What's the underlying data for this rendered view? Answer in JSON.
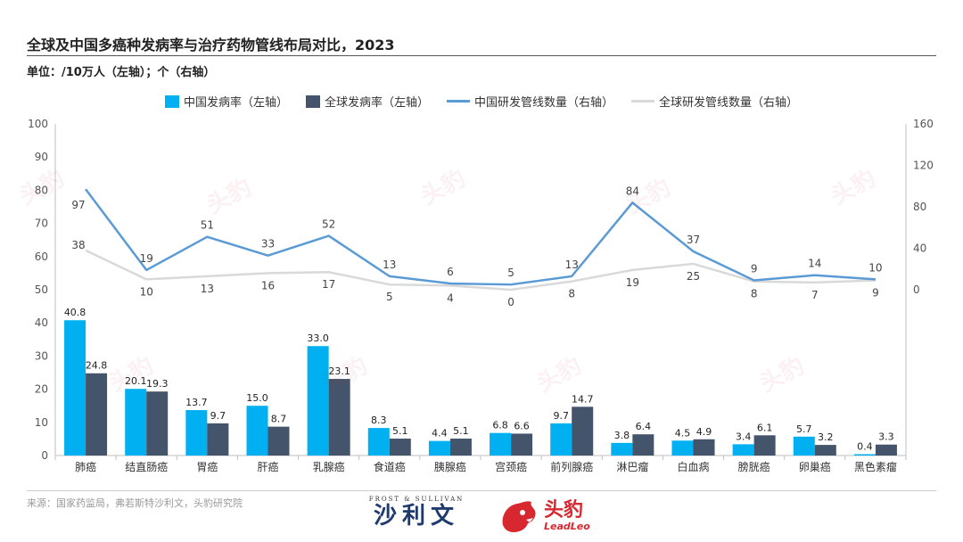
{
  "title": "全球及中国多癌种发病率与治疗药物管线布局对比，2023",
  "unit": "单位：/10万人（左轴）；个（右轴）",
  "legend": {
    "china_rate": "中国发病率（左轴）",
    "global_rate": "全球发病率（左轴）",
    "china_pipeline": "中国研发管线数量（右轴）",
    "global_pipeline": "全球研发管线数量（右轴）"
  },
  "colors": {
    "china_bar": "#00b0f0",
    "global_bar": "#44546a",
    "china_line": "#5b9bd5",
    "global_line": "#d9d9d9",
    "brand_red": "#d7282f",
    "brand_navy": "#1f3a6e"
  },
  "chart_data": {
    "type": "bar",
    "categories": [
      "肺癌",
      "结直肠癌",
      "胃癌",
      "肝癌",
      "乳腺癌",
      "食道癌",
      "胰腺癌",
      "宫颈癌",
      "前列腺癌",
      "淋巴瘤",
      "白血病",
      "膀胱癌",
      "卵巢癌",
      "黑色素瘤"
    ],
    "series": [
      {
        "name": "中国发病率（左轴）",
        "kind": "bar",
        "axis": "left",
        "values": [
          40.8,
          20.1,
          13.7,
          15.0,
          33.0,
          8.3,
          4.4,
          6.8,
          9.7,
          3.8,
          4.5,
          3.4,
          5.7,
          0.4
        ]
      },
      {
        "name": "全球发病率（左轴）",
        "kind": "bar",
        "axis": "left",
        "values": [
          24.8,
          19.3,
          9.7,
          8.7,
          23.1,
          5.1,
          5.1,
          6.6,
          14.7,
          6.4,
          4.9,
          6.1,
          3.2,
          3.3
        ]
      },
      {
        "name": "中国研发管线数量（右轴）",
        "kind": "line",
        "axis": "right",
        "values": [
          97,
          19,
          51,
          33,
          52,
          13,
          6,
          5,
          13,
          84,
          37,
          9,
          14,
          10
        ]
      },
      {
        "name": "全球研发管线数量（右轴）",
        "kind": "line",
        "axis": "right",
        "values": [
          38,
          10,
          13,
          16,
          17,
          5,
          4,
          0,
          8,
          19,
          25,
          8,
          7,
          9
        ]
      }
    ],
    "left_axis": {
      "min": 0,
      "max": 100,
      "ticks": [
        0,
        10,
        20,
        30,
        40,
        50,
        60,
        70,
        80,
        90,
        100
      ]
    },
    "right_axis": {
      "ticks": [
        0,
        40,
        80,
        120,
        160
      ],
      "range": [
        0,
        160
      ],
      "spans_left_range": [
        50,
        100
      ]
    },
    "bar_labels": [
      [
        "40.8",
        "24.8"
      ],
      [
        "20.1",
        "19.3"
      ],
      [
        "13.7",
        "9.7"
      ],
      [
        "15.0",
        "8.7"
      ],
      [
        "33.0",
        "23.1"
      ],
      [
        "8.3",
        "5.1"
      ],
      [
        "4.4",
        "5.1"
      ],
      [
        "6.8",
        "6.6"
      ],
      [
        "9.7",
        "14.7"
      ],
      [
        "3.8",
        "6.4"
      ],
      [
        "4.5",
        "4.9"
      ],
      [
        "3.4",
        "6.1"
      ],
      [
        "5.7",
        "3.2"
      ],
      [
        "0.4",
        "3.3"
      ]
    ],
    "legend_position": "top-center",
    "grid": false
  },
  "footer": {
    "source": "来源：国家药监局，弗若斯特沙利文，头豹研究院",
    "fs_top": "FROST & SULLIVAN",
    "fs_main": "沙利文",
    "ll_cn": "头豹",
    "ll_en": "LeadLeo"
  },
  "watermark": "头豹"
}
